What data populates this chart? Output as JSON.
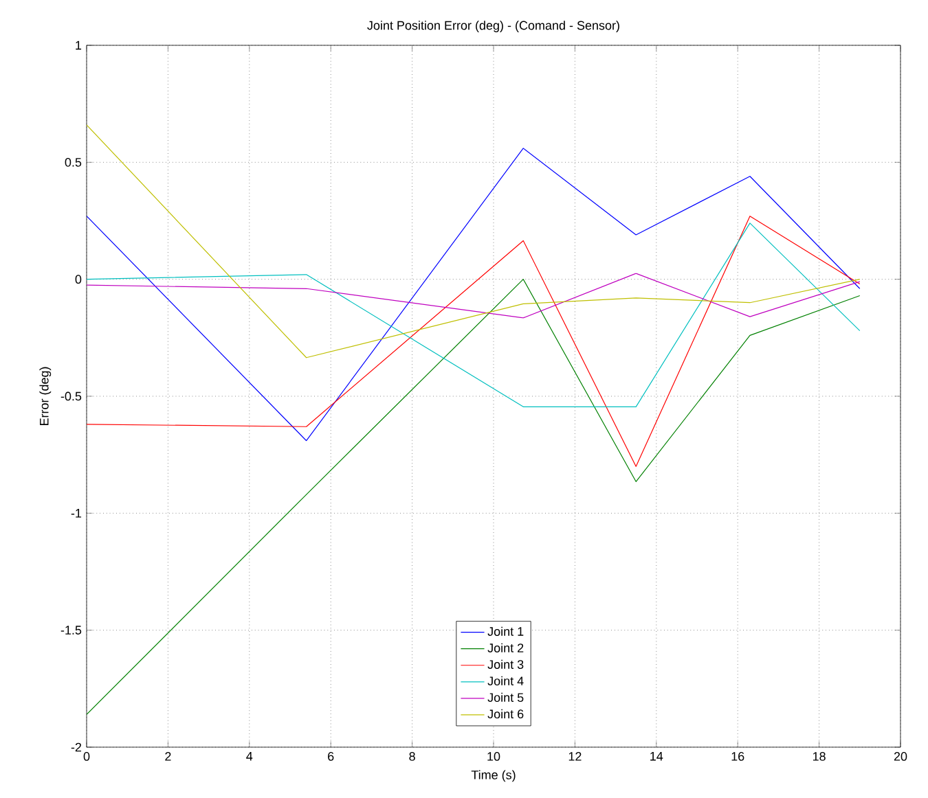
{
  "chart_data": {
    "type": "line",
    "title": "Joint Position Error (deg) - (Comand - Sensor)",
    "xlabel": "Time (s)",
    "ylabel": "Error (deg)",
    "x": [
      0,
      5.4,
      10.73,
      13.5,
      16.3,
      19.0
    ],
    "series": [
      {
        "name": "Joint 1",
        "color": "#0000ff",
        "values": [
          0.27,
          -0.69,
          0.56,
          0.19,
          0.44,
          -0.04
        ]
      },
      {
        "name": "Joint 2",
        "color": "#008000",
        "values": [
          -1.86,
          -0.92,
          0.0,
          -0.865,
          -0.24,
          -0.07
        ]
      },
      {
        "name": "Joint 3",
        "color": "#ff0000",
        "values": [
          -0.62,
          -0.63,
          0.165,
          -0.8,
          0.27,
          -0.02
        ]
      },
      {
        "name": "Joint 4",
        "color": "#00bfbf",
        "values": [
          0.0,
          0.02,
          -0.545,
          -0.545,
          0.24,
          -0.22
        ]
      },
      {
        "name": "Joint 5",
        "color": "#bf00bf",
        "values": [
          -0.025,
          -0.04,
          -0.165,
          0.025,
          -0.16,
          -0.01
        ]
      },
      {
        "name": "Joint 6",
        "color": "#bfbf00",
        "values": [
          0.66,
          -0.335,
          -0.105,
          -0.08,
          -0.1,
          0.0
        ]
      }
    ],
    "xlim": [
      0,
      20
    ],
    "ylim": [
      -2,
      1
    ],
    "xticks": [
      0,
      2,
      4,
      6,
      8,
      10,
      12,
      14,
      16,
      18,
      20
    ],
    "yticks": [
      -2,
      -1.5,
      -1,
      -0.5,
      0,
      0.5,
      1
    ],
    "grid": true,
    "legend": "bottom",
    "line_style": "solid"
  }
}
